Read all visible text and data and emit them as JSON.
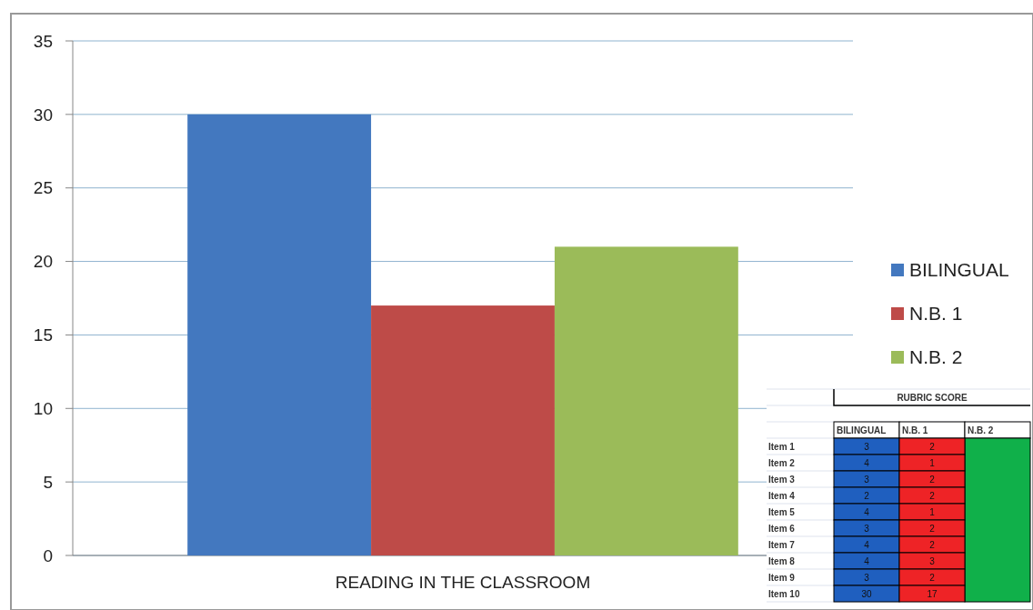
{
  "chart_data": [
    {
      "type": "bar",
      "categories": [
        "READING IN THE CLASSROOM"
      ],
      "series": [
        {
          "name": "BILINGUAL",
          "color": "#4378bf",
          "values": [
            30
          ]
        },
        {
          "name": "N.B. 1",
          "color": "#be4b48",
          "values": [
            17
          ]
        },
        {
          "name": "N.B. 2",
          "color": "#9bbb59",
          "values": [
            21
          ]
        }
      ],
      "ylim": [
        0,
        35
      ],
      "yticks": [
        0,
        5,
        10,
        15,
        20,
        25,
        30,
        35
      ],
      "grid": "y",
      "legend": "right"
    },
    {
      "type": "heatmap",
      "title": "RUBRIC SCORE",
      "categories": [
        "BILINGUAL",
        "N.B. 1",
        "N.B. 2"
      ],
      "colors": [
        "#1f5fbf",
        "#ee2326",
        "#10b04a"
      ],
      "data_labels": true,
      "y_categories": [
        "Item 1",
        "Item 2",
        "Item 3",
        "Item 4",
        "Item 5",
        "Item 6",
        "Item 7",
        "Item 8",
        "Item 9",
        "Item 10"
      ],
      "cells": [
        [
          3,
          2,
          null
        ],
        [
          4,
          1,
          null
        ],
        [
          3,
          2,
          null
        ],
        [
          2,
          2,
          null
        ],
        [
          4,
          1,
          null
        ],
        [
          3,
          2,
          null
        ],
        [
          4,
          2,
          null
        ],
        [
          4,
          3,
          null
        ],
        [
          3,
          2,
          null
        ],
        [
          30,
          17,
          null
        ]
      ]
    }
  ]
}
